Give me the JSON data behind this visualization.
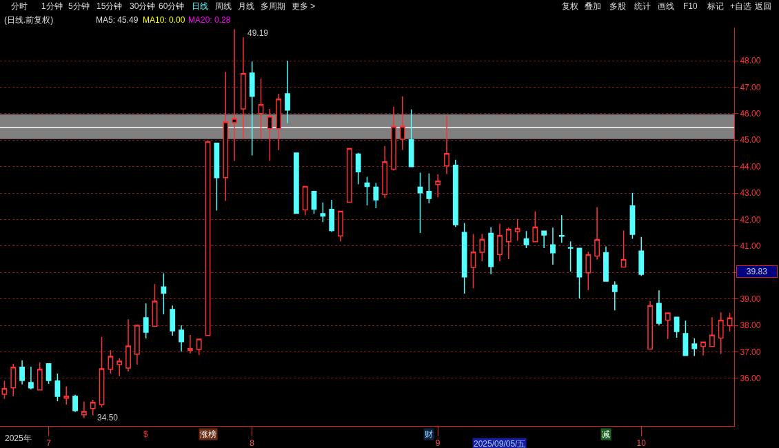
{
  "chart_data": {
    "type": "candlestick",
    "title": "(日线.前复权)",
    "categories": [
      null,
      null,
      null,
      null,
      null,
      "7",
      null,
      null,
      null,
      null,
      null,
      null,
      null,
      null,
      null,
      null,
      null,
      null,
      null,
      null,
      null,
      null,
      null,
      null,
      null,
      null,
      null,
      null,
      "8",
      null,
      null,
      null,
      null,
      null,
      null,
      null,
      null,
      null,
      null,
      null,
      null,
      null,
      null,
      null,
      null,
      null,
      null,
      null,
      null,
      "9",
      null,
      null,
      null,
      null,
      null,
      null,
      null,
      null,
      null,
      null,
      null,
      null,
      null,
      null,
      null,
      null,
      null,
      null,
      null,
      null,
      null,
      null,
      "10",
      null,
      null,
      null,
      null,
      null,
      null,
      null,
      null,
      null,
      null
    ],
    "ohlc": [
      [
        35.4,
        35.9,
        35.22,
        35.61
      ],
      [
        35.64,
        36.55,
        35.32,
        36.42
      ],
      [
        36.42,
        36.68,
        35.77,
        35.92
      ],
      [
        35.84,
        36.44,
        35.58,
        35.64
      ],
      [
        35.56,
        36.6,
        35.56,
        36.34
      ],
      [
        36.55,
        36.55,
        35.79,
        35.92
      ],
      [
        35.9,
        36.18,
        35.14,
        35.32
      ],
      [
        35.25,
        35.69,
        35.01,
        35.32
      ],
      [
        35.32,
        35.38,
        34.73,
        34.78
      ],
      [
        34.62,
        35.12,
        34.5,
        34.75
      ],
      [
        34.86,
        35.19,
        34.6,
        35.09
      ],
      [
        35.01,
        37.56,
        34.91,
        36.36
      ],
      [
        36.34,
        37.06,
        36.18,
        36.83
      ],
      [
        36.52,
        36.75,
        36.08,
        36.65
      ],
      [
        36.39,
        38.23,
        36.26,
        37.22
      ],
      [
        36.91,
        38.03,
        36.52,
        38.0
      ],
      [
        38.29,
        38.83,
        37.51,
        37.74
      ],
      [
        37.97,
        39.56,
        37.97,
        38.91
      ],
      [
        39.45,
        39.97,
        38.42,
        39.22
      ],
      [
        38.6,
        38.75,
        37.61,
        37.79
      ],
      [
        37.82,
        38.0,
        37.01,
        37.38
      ],
      [
        37.06,
        37.64,
        36.94,
        37.12
      ],
      [
        37.09,
        37.48,
        36.88,
        37.48
      ],
      [
        37.62,
        44.94,
        37.6,
        44.94
      ],
      [
        44.88,
        44.88,
        42.34,
        43.58
      ],
      [
        43.58,
        47.58,
        42.7,
        45.69
      ],
      [
        45.66,
        49.19,
        44.21,
        45.81
      ],
      [
        46.18,
        48.88,
        45.06,
        47.51
      ],
      [
        47.53,
        47.97,
        44.42,
        46.65
      ],
      [
        46.0,
        47.32,
        45.03,
        46.34
      ],
      [
        45.43,
        46.18,
        44.21,
        45.9
      ],
      [
        45.43,
        46.75,
        44.62,
        46.55
      ],
      [
        46.75,
        48.0,
        45.64,
        46.13
      ],
      [
        44.51,
        44.51,
        42.23,
        42.23
      ],
      [
        42.36,
        43.25,
        42.16,
        43.25
      ],
      [
        43.06,
        43.06,
        42.21,
        42.39
      ],
      [
        42.22,
        42.64,
        41.9,
        42.13
      ],
      [
        42.38,
        42.74,
        41.53,
        41.58
      ],
      [
        41.38,
        42.31,
        41.17,
        42.31
      ],
      [
        42.65,
        44.68,
        42.65,
        44.68
      ],
      [
        44.47,
        44.52,
        43.33,
        43.8
      ],
      [
        43.38,
        43.61,
        42.53,
        43.25
      ],
      [
        43.22,
        43.38,
        42.43,
        42.74
      ],
      [
        42.94,
        44.78,
        42.81,
        44.18
      ],
      [
        43.9,
        46.26,
        43.85,
        45.52
      ],
      [
        45.03,
        46.65,
        44.63,
        45.52
      ],
      [
        45.01,
        46.16,
        43.98,
        44.0
      ],
      [
        43.22,
        43.77,
        41.49,
        43.01
      ],
      [
        43.06,
        43.74,
        42.61,
        42.79
      ],
      [
        43.32,
        43.71,
        42.84,
        43.45
      ],
      [
        44.02,
        45.92,
        43.72,
        44.49
      ],
      [
        44.05,
        44.26,
        41.72,
        41.8
      ],
      [
        41.51,
        41.87,
        39.2,
        39.83
      ],
      [
        40.19,
        41.45,
        39.41,
        40.77
      ],
      [
        40.76,
        41.45,
        40.42,
        41.25
      ],
      [
        41.48,
        41.71,
        39.93,
        40.22
      ],
      [
        40.68,
        41.84,
        40.42,
        41.39
      ],
      [
        41.16,
        41.69,
        40.5,
        41.63
      ],
      [
        41.54,
        42.0,
        41.2,
        41.66
      ],
      [
        41.27,
        41.56,
        40.92,
        41.05
      ],
      [
        41.16,
        42.31,
        41.16,
        41.71
      ],
      [
        41.56,
        41.56,
        40.92,
        41.41
      ],
      [
        41.04,
        41.69,
        40.29,
        40.74
      ],
      [
        41.39,
        42.16,
        41.12,
        41.37
      ],
      [
        40.94,
        41.17,
        40.03,
        40.92
      ],
      [
        40.91,
        40.91,
        39.02,
        39.83
      ],
      [
        39.99,
        40.78,
        39.33,
        40.67
      ],
      [
        40.62,
        42.47,
        40.48,
        41.24
      ],
      [
        40.75,
        40.98,
        39.67,
        39.67
      ],
      [
        39.52,
        39.66,
        38.57,
        39.28
      ],
      [
        40.2,
        41.58,
        40.2,
        40.49
      ],
      [
        42.51,
        43.01,
        41.27,
        41.44
      ],
      [
        40.81,
        41.34,
        39.87,
        39.93
      ],
      [
        37.1,
        38.92,
        37.1,
        38.75
      ],
      [
        38.83,
        39.32,
        38.01,
        38.08
      ],
      [
        38.2,
        38.47,
        37.49,
        38.47
      ],
      [
        38.31,
        38.31,
        37.53,
        37.77
      ],
      [
        37.69,
        38.18,
        36.86,
        36.86
      ],
      [
        37.3,
        37.51,
        36.84,
        37.12
      ],
      [
        37.21,
        37.37,
        36.86,
        37.37
      ],
      [
        37.2,
        38.31,
        37.2,
        37.63
      ],
      [
        37.52,
        38.49,
        36.92,
        38.2
      ],
      [
        37.99,
        38.47,
        37.77,
        38.28
      ]
    ],
    "ylim": [
      34.2,
      49.25
    ],
    "yticks": [
      {
        "value": 36,
        "label": "36.00"
      },
      {
        "value": 37,
        "label": "37.00"
      },
      {
        "value": 38,
        "label": "38.00"
      },
      {
        "value": 39,
        "label": "39.00"
      },
      {
        "value": 40,
        "label": null
      },
      {
        "value": 41,
        "label": "41.00"
      },
      {
        "value": 42,
        "label": "42.00"
      },
      {
        "value": 43,
        "label": "43.00"
      },
      {
        "value": 44,
        "label": "44.00"
      },
      {
        "value": 45,
        "label": "45.00"
      },
      {
        "value": 46,
        "label": "46.00"
      },
      {
        "value": 47,
        "label": "47.00"
      },
      {
        "value": 48,
        "label": "48.00"
      }
    ],
    "grid": "y",
    "bands": [
      {
        "axis": "y",
        "from": 45.04,
        "to": 45.97,
        "color": "#808080"
      }
    ],
    "ref_lines": [
      {
        "axis": "y",
        "value": 45.48,
        "color": "#ffffff"
      }
    ],
    "annotations": [
      "分时",
      "1分钟",
      "5分钟",
      "15分钟",
      "30分钟",
      "60分钟",
      "日线",
      "周线",
      "月线",
      "多周期",
      "更多 >",
      "复权",
      "叠加",
      "多股",
      "统计",
      "画线",
      "F10",
      "标记",
      "+自选",
      "返回",
      "MA5: 45.49",
      "MA10: 0.00",
      "MA20: 0.28",
      "2025年",
      "$",
      "涨榜",
      "财",
      "2025/09/05/五",
      "减",
      "49.19",
      "34.50",
      "39.83"
    ]
  }
}
